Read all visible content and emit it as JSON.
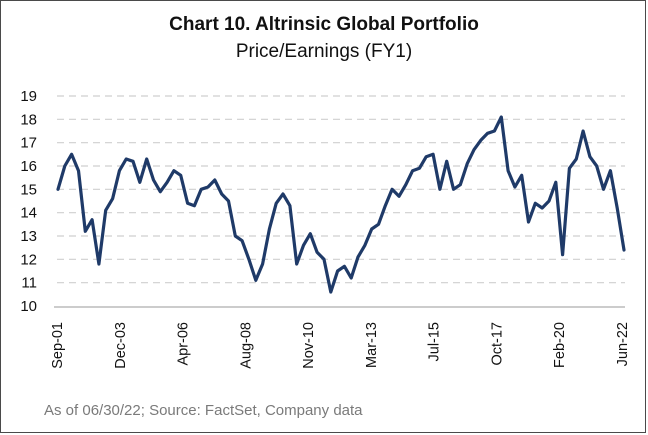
{
  "chart_data": {
    "type": "line",
    "title": "Chart 10. Altrinsic Global Portfolio",
    "subtitle": "Price/Earnings (FY1)",
    "xlabel": "",
    "ylabel": "",
    "ylim": [
      10,
      19
    ],
    "yticks": [
      10,
      11,
      12,
      13,
      14,
      15,
      16,
      17,
      18,
      19
    ],
    "xtick_labels": [
      "Sep-01",
      "Dec-03",
      "Apr-06",
      "Aug-08",
      "Nov-10",
      "Mar-13",
      "Jul-15",
      "Oct-17",
      "Feb-20",
      "Jun-22"
    ],
    "grid": "horizontal-dashed",
    "line_color": "#1f3a68",
    "source": "As of 06/30/22; Source: FactSet, Company data",
    "series": [
      {
        "values": [
          15.0,
          16.0,
          16.5,
          15.8,
          13.2,
          13.7,
          11.8,
          14.1,
          14.6,
          15.8,
          16.3,
          16.2,
          15.3,
          16.3,
          15.4,
          14.9,
          15.3,
          15.8,
          15.6,
          14.4,
          14.3,
          15.0,
          15.1,
          15.4,
          14.8,
          14.5,
          13.0,
          12.8,
          12.0,
          11.1,
          11.8,
          13.3,
          14.4,
          14.8,
          14.3,
          11.8,
          12.6,
          13.1,
          12.3,
          12.0,
          10.6,
          11.5,
          11.7,
          11.2,
          12.1,
          12.6,
          13.3,
          13.5,
          14.3,
          15.0,
          14.7,
          15.2,
          15.8,
          15.9,
          16.4,
          16.5,
          15.0,
          16.2,
          15.0,
          15.2,
          16.1,
          16.7,
          17.1,
          17.4,
          17.5,
          18.1,
          15.8,
          15.1,
          15.6,
          13.6,
          14.4,
          14.2,
          14.5,
          15.3,
          12.2,
          15.9,
          16.3,
          17.5,
          16.4,
          16.0,
          15.0,
          15.8,
          14.2,
          12.4
        ]
      }
    ]
  }
}
